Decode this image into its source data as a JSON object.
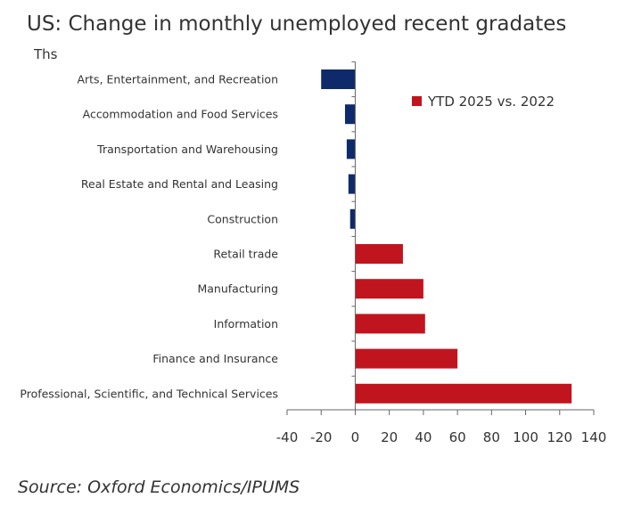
{
  "title": "US: Change in monthly unemployed recent gradates",
  "unit": "Ths",
  "source": "Source: Oxford Economics/IPUMS",
  "colors": {
    "negative": "#0f2a6b",
    "positive": "#c0151f",
    "axis": "#666666"
  },
  "chart_data": {
    "type": "bar",
    "orientation": "horizontal",
    "categories": [
      "Arts, Entertainment, and Recreation",
      "Accommodation and Food Services",
      "Transportation and Warehousing",
      "Real Estate and Rental and Leasing",
      "Construction",
      "Retail trade",
      "Manufacturing",
      "Information",
      "Finance and Insurance",
      "Professional, Scientific, and Technical Services"
    ],
    "series": [
      {
        "name": "YTD 2025 vs. 2022",
        "values": [
          -20,
          -6,
          -5,
          -4,
          -3,
          28,
          40,
          41,
          60,
          127
        ]
      }
    ],
    "xlim": [
      -40,
      140
    ],
    "xticks": [
      -40,
      -20,
      0,
      20,
      40,
      60,
      80,
      100,
      120,
      140
    ],
    "legend": "top-right",
    "grid": false
  }
}
